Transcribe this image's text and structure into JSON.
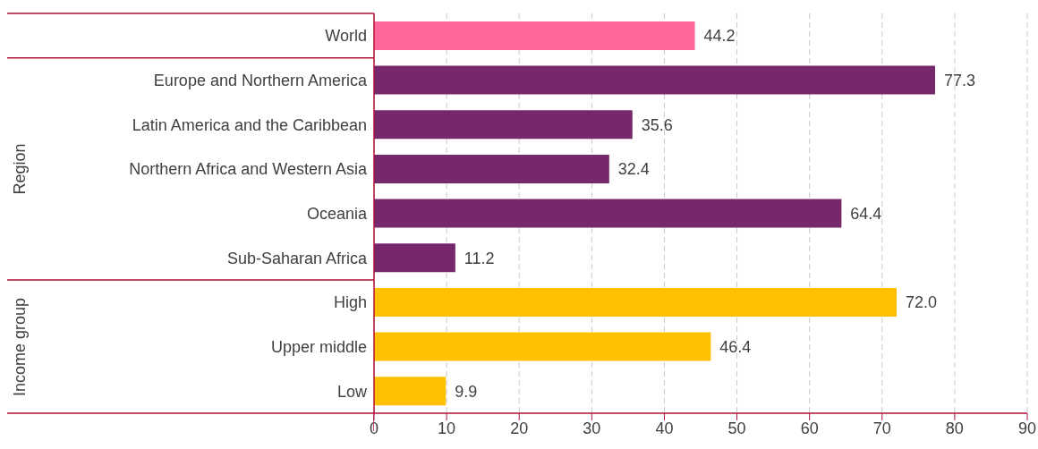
{
  "chart_data": {
    "type": "bar",
    "orientation": "horizontal",
    "categories": [
      "World",
      "Europe and Northern America",
      "Latin America and the Caribbean",
      "Northern Africa and Western Asia",
      "Oceania",
      "Sub-Saharan Africa",
      "High",
      "Upper middle",
      "Low"
    ],
    "values": [
      44.2,
      77.3,
      35.6,
      32.4,
      64.4,
      11.2,
      72.0,
      46.4,
      9.9
    ],
    "value_labels": [
      "44.2",
      "77.3",
      "35.6",
      "32.4",
      "64.4",
      "11.2",
      "72.0",
      "46.4",
      "9.9"
    ],
    "colors": [
      "#ff6699",
      "#77276b",
      "#77276b",
      "#77276b",
      "#77276b",
      "#77276b",
      "#ffc000",
      "#ffc000",
      "#ffc000"
    ],
    "xlim": [
      0,
      90
    ],
    "xticks": [
      0,
      10,
      20,
      30,
      40,
      50,
      60,
      70,
      80,
      90
    ],
    "grid": "x",
    "annotations": [
      "Region",
      "Income group"
    ]
  }
}
